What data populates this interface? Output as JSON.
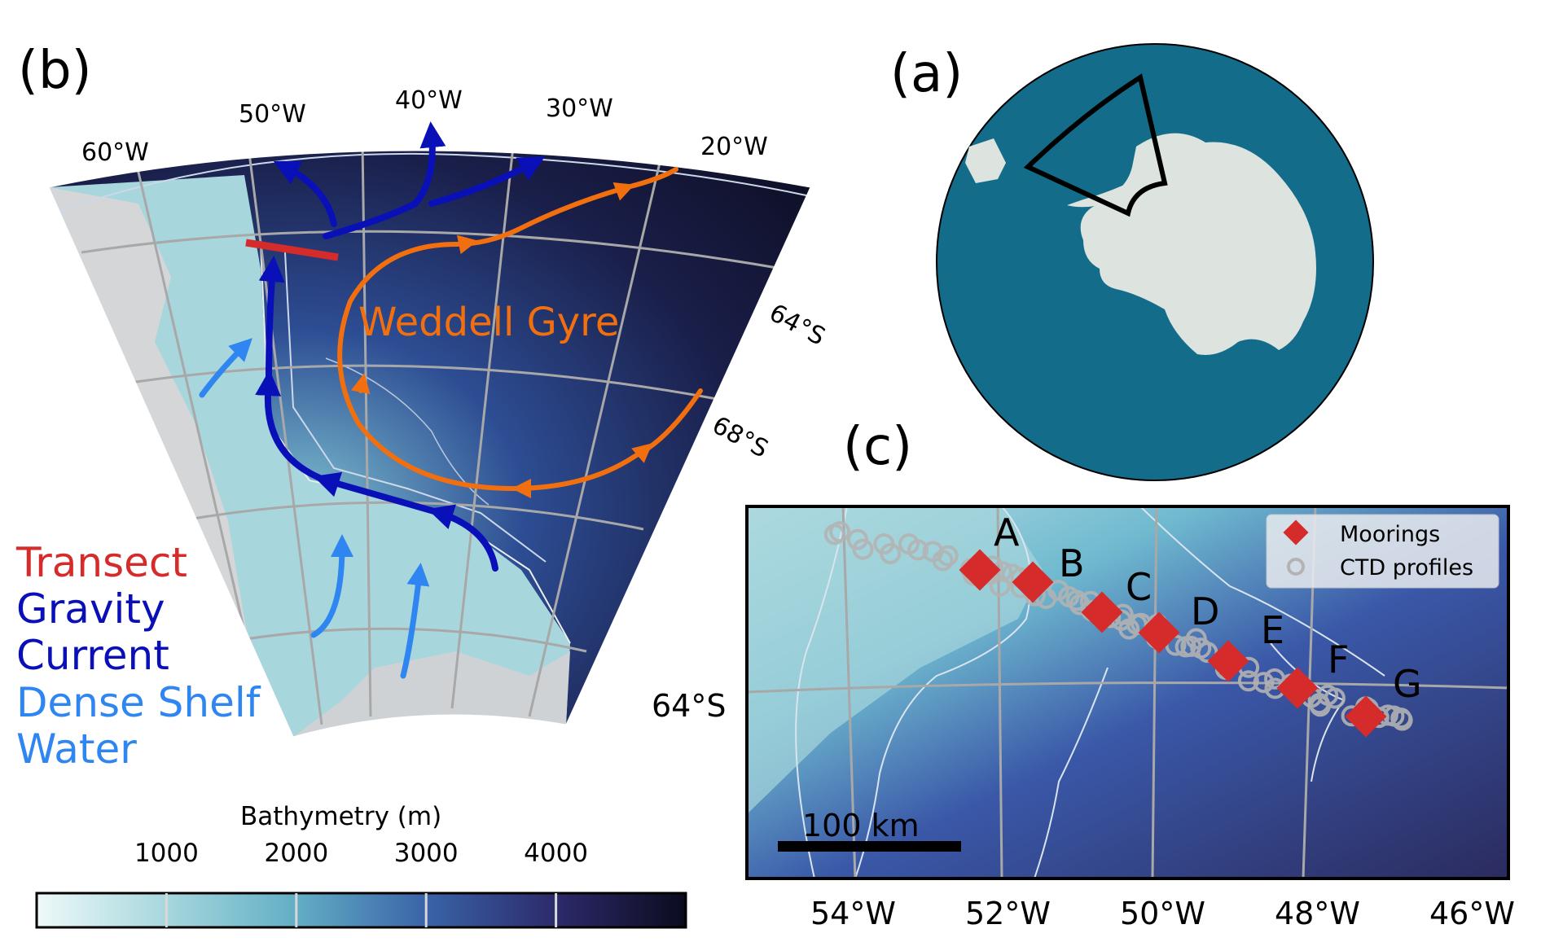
{
  "panels": {
    "a": {
      "label": "(a)",
      "colors": {
        "ocean": "#136d8a",
        "land": "#dde3df",
        "box": "#000000"
      }
    },
    "b": {
      "label": "(b)",
      "longitude_labels": [
        "60°W",
        "50°W",
        "40°W",
        "30°W",
        "20°W"
      ],
      "latitude_labels": [
        "64°S",
        "68°S"
      ],
      "gyre_label": "Weddell Gyre",
      "legend": {
        "transect": "Transect",
        "gravity_current_line1": "Gravity",
        "gravity_current_line2": "Current",
        "dense_shelf_water_line1": "Dense Shelf",
        "dense_shelf_water_line2": "Water"
      },
      "colors": {
        "transect": "#d52b2b",
        "gravity_current": "#0a10b8",
        "dense_shelf_water": "#2f86f0",
        "gyre": "#f26f0f",
        "deep_ocean": "#12132e",
        "shelf": "#a9d8de"
      }
    },
    "c": {
      "label": "(c)",
      "mooring_letters": [
        "A",
        "B",
        "C",
        "D",
        "E",
        "F",
        "G"
      ],
      "latitude_label": "64°S",
      "longitude_labels": [
        "54°W",
        "52°W",
        "50°W",
        "48°W",
        "46°W"
      ],
      "scale_bar_label": "100 km",
      "legend": {
        "moorings": "Moorings",
        "ctd_profiles": "CTD profiles"
      },
      "colors": {
        "moorings": "#d52b2b",
        "ctd_profiles": "#b3b3b3"
      }
    }
  },
  "colorbar": {
    "title": "Bathymetry (m)",
    "ticks": [
      "1000",
      "2000",
      "3000",
      "4000"
    ],
    "tick_values": [
      1000,
      2000,
      3000,
      4000
    ],
    "range": [
      0,
      5000
    ]
  }
}
